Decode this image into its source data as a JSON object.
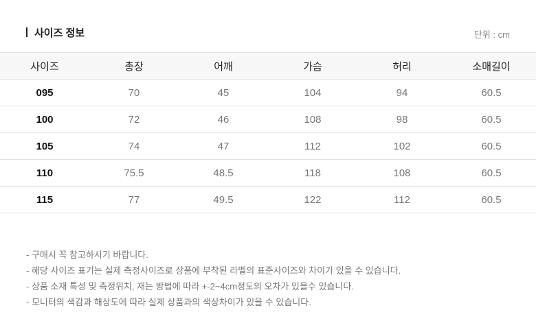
{
  "title": "사이즈 정보",
  "unit": "단위 : cm",
  "table": {
    "headers": [
      "사이즈",
      "총장",
      "어깨",
      "가슴",
      "허리",
      "소매길이"
    ],
    "rows": [
      [
        "095",
        "70",
        "45",
        "104",
        "94",
        "60.5"
      ],
      [
        "100",
        "72",
        "46",
        "108",
        "98",
        "60.5"
      ],
      [
        "105",
        "74",
        "47",
        "112",
        "102",
        "60.5"
      ],
      [
        "110",
        "75.5",
        "48.5",
        "118",
        "108",
        "60.5"
      ],
      [
        "115",
        "77",
        "49.5",
        "122",
        "112",
        "60.5"
      ]
    ]
  },
  "notes": [
    "- 구매시 꼭 참고하시기 바랍니다.",
    "- 해당 사이즈 표기는 실제 측정사이즈로 상품에 부착된 라벨의 표준사이즈와 차이가 있을 수 있습니다.",
    "- 상품 소재 특성 및 측정위치, 재는 방법에 따라 +-2~4cm정도의 오차가 있을수 있습니다.",
    "- 모니터의 색감과 해상도에 따라 실제 상품과의 색상차이가 있을 수 있습니다."
  ]
}
